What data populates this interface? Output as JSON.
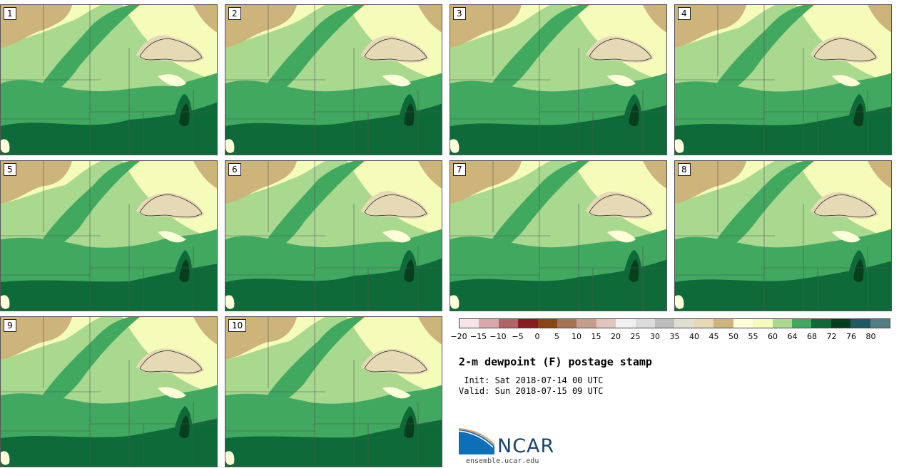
{
  "stamps": [
    {
      "label": "1"
    },
    {
      "label": "2"
    },
    {
      "label": "3"
    },
    {
      "label": "4"
    },
    {
      "label": "5"
    },
    {
      "label": "6"
    },
    {
      "label": "7"
    },
    {
      "label": "8"
    },
    {
      "label": "9"
    },
    {
      "label": "10"
    }
  ],
  "colorbar": {
    "ticks": [
      "−20",
      "−15",
      "−10",
      "−5",
      "0",
      "5",
      "10",
      "15",
      "20",
      "25",
      "30",
      "35",
      "40",
      "45",
      "50",
      "55",
      "60",
      "64",
      "68",
      "72",
      "76",
      "80"
    ],
    "colors": [
      "#f5e5e8",
      "#d9a6a9",
      "#b36265",
      "#8c1a1f",
      "#8b4513",
      "#a87354",
      "#c49e8b",
      "#dfc5bc",
      "#f0f0f0",
      "#dcdcdc",
      "#bdbdbd",
      "#e0e0d0",
      "#e6d9b5",
      "#cdb47a",
      "#fefed8",
      "#f5fbb9",
      "#a8d98f",
      "#41a85f",
      "#0e6b39",
      "#073f1e",
      "#1d5a63",
      "#517e83"
    ]
  },
  "title": "2-m dewpoint (F) postage stamp",
  "init": " Init: Sat 2018-07-14 00 UTC",
  "valid": "Valid: Sun 2018-07-15 09 UTC",
  "logo": {
    "text": "NCAR",
    "url": "ensemble.ucar.edu"
  },
  "map_colors": {
    "tan": "#cdb47a",
    "light_tan": "#e6d9b5",
    "pale_yellow": "#f5fbb9",
    "cream": "#fefed8",
    "light_green": "#a8d98f",
    "medium_green": "#41a85f",
    "dark_green": "#0e6b39",
    "darkest_green": "#073f1e"
  }
}
